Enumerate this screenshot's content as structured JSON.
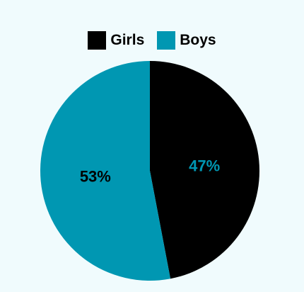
{
  "chart_data": {
    "type": "pie",
    "series": [
      {
        "name": "Girls",
        "value": 47,
        "label": "47%",
        "color": "#000000",
        "label_color": "#0097b2"
      },
      {
        "name": "Boys",
        "value": 53,
        "label": "53%",
        "color": "#0097b2",
        "label_color": "#000000"
      }
    ],
    "legend": "top-center",
    "background": "#f0fbfd"
  }
}
